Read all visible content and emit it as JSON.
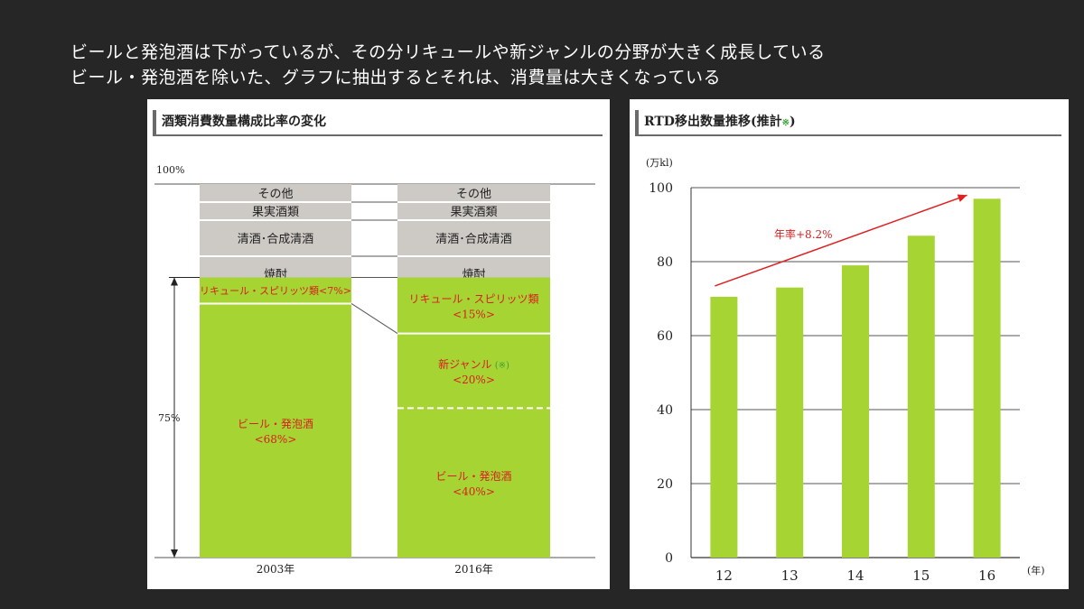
{
  "heading": {
    "line1": "ビールと発泡酒は下がっているが、その分リキュールや新ジャンルの分野が大きく成長している",
    "line2": "ビール・発泡酒を除いた、グラフに抽出するとそれは、消費量は大きくなっている"
  },
  "colors": {
    "green": "#a6d433",
    "gray": "#cdcac5",
    "red_text": "#d81e1e",
    "arrow": "#e02020"
  },
  "chart_data": [
    {
      "type": "bar",
      "subtype": "stacked-100%",
      "title": "酒類消費数量構成比率の変化",
      "ytop_label": "100%",
      "bracket_label": "75%",
      "categories": [
        "2003年",
        "2016年"
      ],
      "segments": [
        {
          "category": "2003年",
          "parts": [
            {
              "name": "その他",
              "color": "gray"
            },
            {
              "name": "果実酒類",
              "color": "gray"
            },
            {
              "name": "清酒･合成清酒",
              "color": "gray"
            },
            {
              "name": "焼酎",
              "color": "gray"
            },
            {
              "name": "リキュール・スピリッツ類",
              "value_label": "<7%>",
              "value": 7,
              "color": "green"
            },
            {
              "name": "ビール・発泡酒",
              "value_label": "<68%>",
              "value": 68,
              "color": "green"
            }
          ]
        },
        {
          "category": "2016年",
          "parts": [
            {
              "name": "その他",
              "color": "gray"
            },
            {
              "name": "果実酒類",
              "color": "gray"
            },
            {
              "name": "清酒･合成清酒",
              "color": "gray"
            },
            {
              "name": "焼酎",
              "color": "gray"
            },
            {
              "name": "リキュール・スピリッツ類",
              "value_label": "<15%>",
              "value": 15,
              "color": "green"
            },
            {
              "name": "新ジャンル",
              "mark": "※",
              "value_label": "<20%>",
              "value": 20,
              "color": "green"
            },
            {
              "name": "ビール・発泡酒",
              "value_label": "<40%>",
              "value": 40,
              "color": "green"
            }
          ]
        }
      ]
    },
    {
      "type": "bar",
      "title": "RTD移出数量推移(推計",
      "title_mark": "※",
      "title_close": ")",
      "ylabel": "(万kl)",
      "xlabel": "(年)",
      "categories": [
        "12",
        "13",
        "14",
        "15",
        "16"
      ],
      "values": [
        70.5,
        73,
        79,
        87,
        97
      ],
      "ylim": [
        0,
        100
      ],
      "yticks": [
        0,
        20,
        40,
        60,
        80,
        100
      ],
      "grid": true,
      "annotation": "年率+8.2%"
    }
  ]
}
